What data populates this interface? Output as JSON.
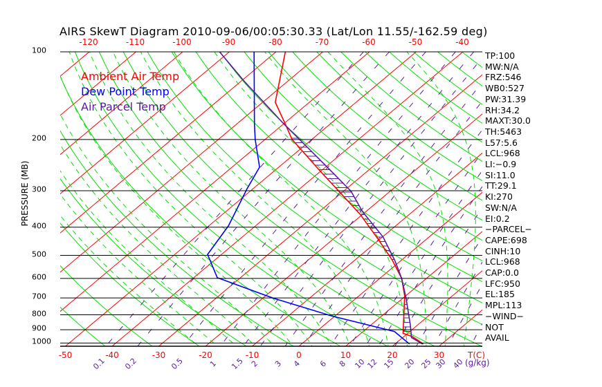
{
  "chart_data": {
    "type": "line",
    "title": "AIRS SkewT Diagram 2010-09-06/00:05:30.33 (Lat/Lon 11.55/-162.59 deg)",
    "ylabel": "PRESSURE (MB)",
    "xlabel": "T(C)",
    "mixing_ratio_unit": "(g/kg)",
    "pressure_ticks": [
      "100",
      "200",
      "300",
      "400",
      "500",
      "600",
      "700",
      "800",
      "900",
      "1000"
    ],
    "pressure_tick_values": [
      100,
      200,
      300,
      400,
      500,
      600,
      700,
      800,
      900,
      1000
    ],
    "top_temp_ticks": [
      "-120",
      "-110",
      "-100",
      "-90",
      "-80",
      "-70",
      "-60",
      "-50",
      "-40"
    ],
    "top_temp_values": [
      -120,
      -110,
      -100,
      -90,
      -80,
      -70,
      -60,
      -50,
      -40
    ],
    "bottom_temp_ticks": [
      "-50",
      "-40",
      "-30",
      "-20",
      "-10",
      "0",
      "10",
      "20",
      "30"
    ],
    "bottom_temp_values": [
      -50,
      -40,
      -30,
      -20,
      -10,
      0,
      10,
      20,
      30
    ],
    "mixing_ratio_ticks": [
      "0.1",
      "0.2",
      "0.5",
      "1",
      "1.5",
      "2",
      "3",
      "4",
      "6",
      "8",
      "10",
      "12",
      "15",
      "20",
      "25",
      "30",
      "40"
    ],
    "mixing_ratio_values": [
      0.1,
      0.2,
      0.5,
      1,
      1.5,
      2,
      3,
      4,
      6,
      8,
      10,
      12,
      15,
      20,
      25,
      30,
      40
    ],
    "plim": [
      100,
      1050
    ],
    "legend": [
      {
        "label": "Ambient Air Temp",
        "color": "#ff0000"
      },
      {
        "label": "Dew Point Temp",
        "color": "#0000ff"
      },
      {
        "label": "Air Parcel Temp",
        "color": "#5a1aa0"
      }
    ],
    "series": [
      {
        "name": "Ambient Air Temp",
        "color": "#ff0000",
        "p": [
          100,
          149,
          177,
          200,
          256,
          301,
          361,
          442,
          521,
          600,
          689,
          926,
          951,
          1008
        ],
        "T": [
          -78,
          -67.3,
          -59.6,
          -54.2,
          -40.3,
          -31.0,
          -20.6,
          -10.1,
          -1.8,
          4.7,
          9.8,
          19.0,
          21.9,
          26.1
        ]
      },
      {
        "name": "Dew Point Temp",
        "color": "#0000ff",
        "p": [
          100,
          177,
          200,
          249,
          295,
          396,
          496,
          596,
          701,
          808,
          913,
          1008
        ],
        "T": [
          -84.7,
          -66.2,
          -62.1,
          -54.1,
          -51.3,
          -45.8,
          -43.0,
          -35.0,
          -17.8,
          -0.6,
          16.7,
          23.1
        ]
      },
      {
        "name": "Air Parcel Temp",
        "color": "#5a1aa0",
        "p": [
          100,
          126,
          177,
          201,
          249,
          301,
          354,
          432,
          521,
          600,
          698,
          866,
          958,
          1008
        ],
        "T": [
          -92.1,
          -79.4,
          -59.9,
          -52.3,
          -39.6,
          -28.4,
          -20.7,
          -9.9,
          -1.3,
          4.7,
          10.5,
          18.4,
          21.9,
          25.9
        ]
      }
    ]
  },
  "stats": [
    "TP:100",
    "MW:N/A",
    "FRZ:546",
    "WB0:527",
    "PW:31.39",
    "RH:34.2",
    "MAXT:30.0",
    "TH:5463",
    "L57:5.6",
    "LCL:968",
    "LI:−0.9",
    "SI:11.0",
    "TT:29.1",
    "KI:270",
    "SW:N/A",
    "EI:0.2",
    "−PARCEL−",
    "CAPE:698",
    "CINH:10",
    "LCL:968",
    "CAP:0.0",
    "LFC:950",
    "EL:185",
    "MPL:113",
    "−WIND−",
    "NOT",
    "AVAIL"
  ]
}
